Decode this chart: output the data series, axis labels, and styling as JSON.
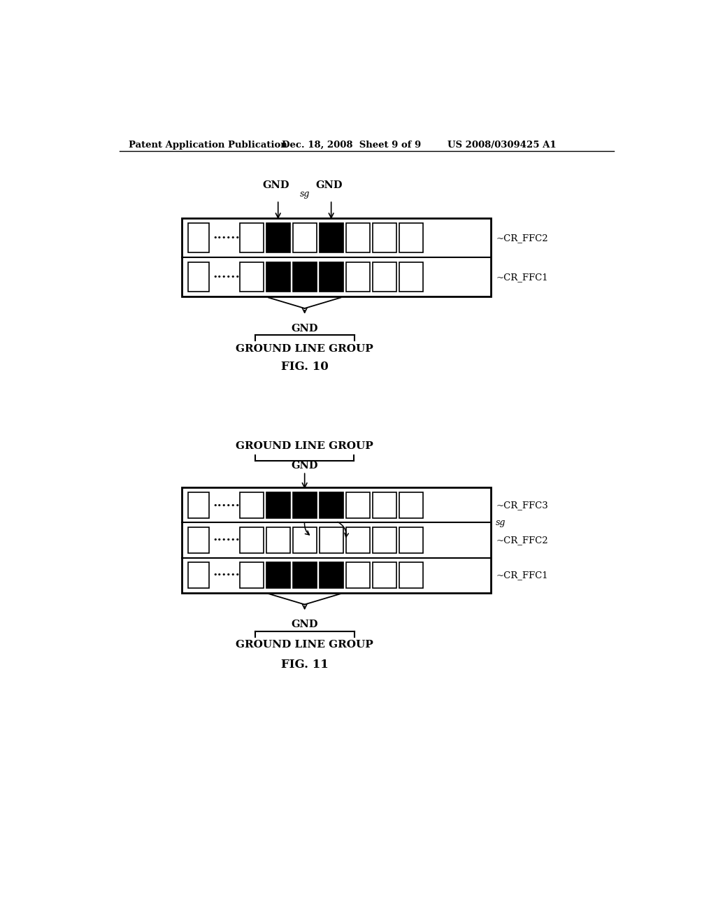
{
  "bg_color": "#ffffff",
  "header_left": "Patent Application Publication",
  "header_mid": "Dec. 18, 2008  Sheet 9 of 9",
  "header_right": "US 2008/0309425 A1",
  "fig10_label": "FIG. 10",
  "fig11_label": "FIG. 11",
  "fig10_bottom_gnd": "GND",
  "fig10_bottom_glg": "GROUND LINE GROUP",
  "fig11_top_glg": "GROUND LINE GROUP",
  "fig11_top_gnd": "GND",
  "fig11_bottom_gnd": "GND",
  "fig11_bottom_glg": "GROUND LINE GROUP",
  "fig10_row1_label": "~CR_FFC2",
  "fig10_row2_label": "~CR_FFC1",
  "fig11_row1_label": "~CR_FFC3",
  "fig11_row2_label": "~CR_FFC2",
  "fig11_row3_label": "~CR_FFC1",
  "fig11_sg_label": "sg",
  "fig10_gnd_left": "GND",
  "fig10_gnd_right": "GND",
  "fig10_sg": "sg"
}
